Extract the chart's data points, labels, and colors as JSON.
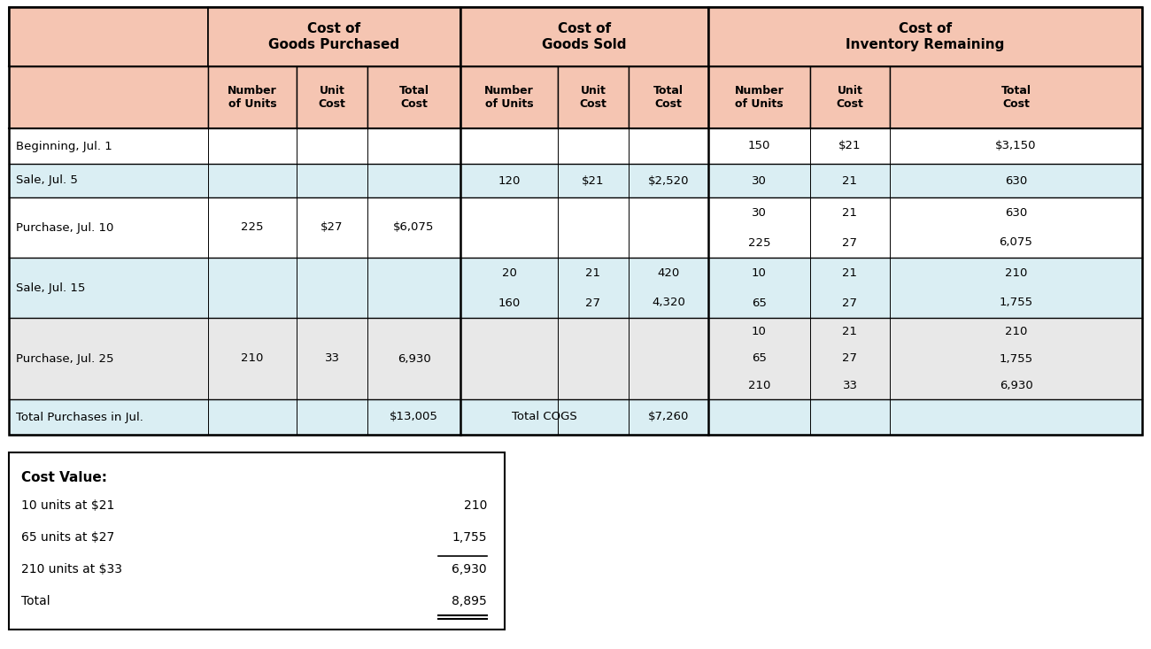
{
  "header_bg": "#f5c5b2",
  "light_bg": "#daeef3",
  "white_bg": "#ffffff",
  "gray_bg": "#e8e8e8",
  "col_groups": [
    {
      "label": "Cost of\nGoods Purchased",
      "cols": [
        1,
        2,
        3
      ]
    },
    {
      "label": "Cost of\nGoods Sold",
      "cols": [
        4,
        5,
        6
      ]
    },
    {
      "label": "Cost of\nInventory Remaining",
      "cols": [
        7,
        8,
        9
      ]
    }
  ],
  "sub_headers": [
    "",
    "Number\nof Units",
    "Unit\nCost",
    "Total\nCost",
    "Number\nof Units",
    "Unit\nCost",
    "Total\nCost",
    "Number\nof Units",
    "Unit\nCost",
    "Total\nCost"
  ],
  "rows": [
    {
      "label": "Beginning, Jul. 1",
      "bg": "white",
      "purch": [
        "",
        "",
        ""
      ],
      "sold": [
        [
          "",
          "",
          ""
        ]
      ],
      "inv": [
        [
          "150",
          "$21",
          "$3,150"
        ]
      ]
    },
    {
      "label": "Sale, Jul. 5",
      "bg": "light",
      "purch": [
        "",
        "",
        ""
      ],
      "sold": [
        [
          "120",
          "$21",
          "$2,520"
        ]
      ],
      "inv": [
        [
          "30",
          "21",
          "630"
        ]
      ]
    },
    {
      "label": "Purchase, Jul. 10",
      "bg": "white",
      "purch": [
        "225",
        "$27",
        "$6,075"
      ],
      "sold": [
        [
          "",
          "",
          ""
        ]
      ],
      "inv": [
        [
          "30",
          "21",
          "630"
        ],
        [
          "225",
          "27",
          "6,075"
        ]
      ]
    },
    {
      "label": "Sale, Jul. 15",
      "bg": "light",
      "purch": [
        "",
        "",
        ""
      ],
      "sold": [
        [
          "20",
          "21",
          "420"
        ],
        [
          "160",
          "27",
          "4,320"
        ]
      ],
      "inv": [
        [
          "10",
          "21",
          "210"
        ],
        [
          "65",
          "27",
          "1,755"
        ]
      ]
    },
    {
      "label": "Purchase, Jul. 25",
      "bg": "gray",
      "purch": [
        "210",
        "33",
        "6,930"
      ],
      "sold": [
        [
          "",
          "",
          ""
        ]
      ],
      "inv": [
        [
          "10",
          "21",
          "210"
        ],
        [
          "65",
          "27",
          "1,755"
        ],
        [
          "210",
          "33",
          "6,930"
        ]
      ]
    },
    {
      "label": "Total Purchases in Jul.",
      "bg": "light",
      "is_total": true,
      "purch_total": "$13,005",
      "sold_label": "Total COGS",
      "sold_total": "$7,260"
    }
  ],
  "cost_value": {
    "title": "Cost Value:",
    "items": [
      {
        "label": "10 units at $21",
        "value": "210",
        "overline": false
      },
      {
        "label": "65 units at $27",
        "value": "1,755",
        "overline": false
      },
      {
        "label": "210 units at $33",
        "value": "6,930",
        "overline": true
      },
      {
        "label": "Total",
        "value": "8,895",
        "overline": false,
        "underline": true
      }
    ]
  }
}
